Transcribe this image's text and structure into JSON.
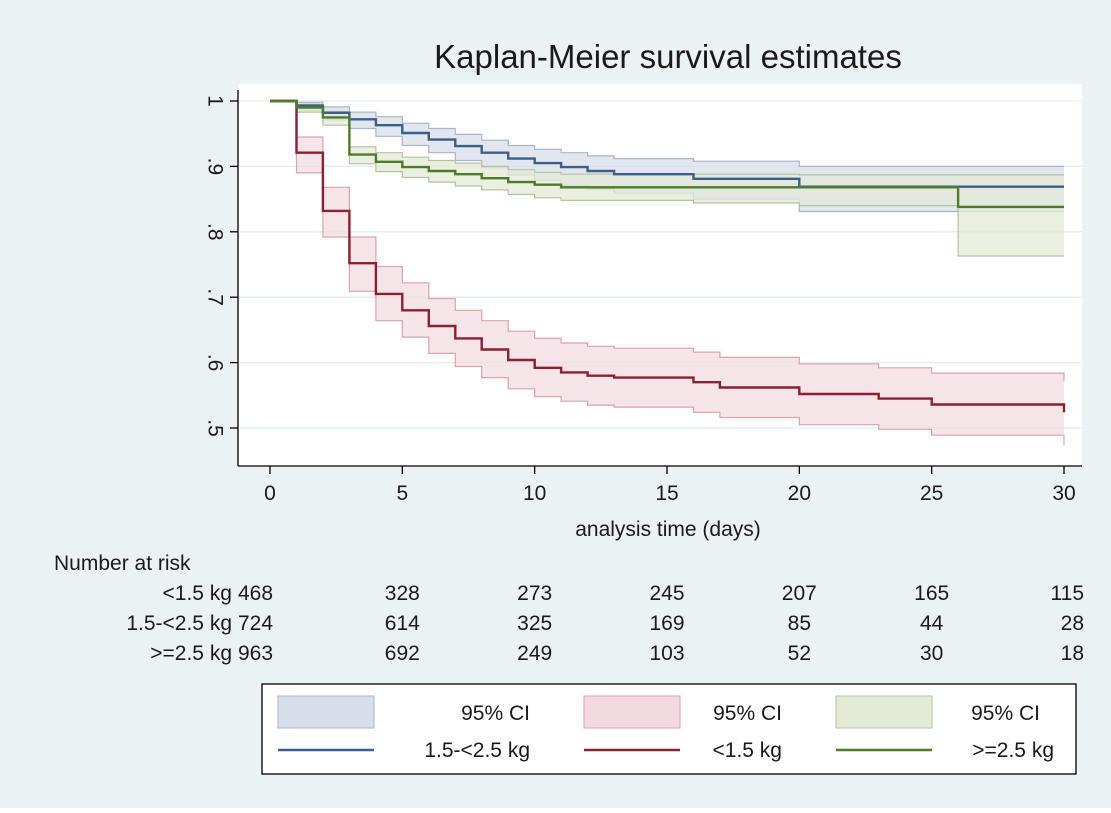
{
  "chart_data": {
    "type": "line",
    "title": "Kaplan-Meier survival estimates",
    "xlabel": "analysis time (days)",
    "ylabel": "",
    "xlim": [
      0,
      30
    ],
    "ylim": [
      0.47,
      1.01
    ],
    "x_ticks": [
      0,
      5,
      10,
      15,
      20,
      25,
      30
    ],
    "y_ticks": [
      0.5,
      0.6,
      0.7,
      0.8,
      0.9,
      1.0
    ],
    "y_tick_labels": [
      ".5",
      ".6",
      ".7",
      ".8",
      ".9",
      "1"
    ],
    "grid": true,
    "colors": {
      "background_outer": "#eaf2f3",
      "plot_area": "#ffffff",
      "grid": "#e4ecee",
      "axis": "#000000"
    },
    "series": [
      {
        "name": "1.5-<2.5 kg",
        "color": "#3a5f88",
        "ci_fill": "#d8dee9",
        "ci_stroke": "#a7b6cc",
        "x": [
          0,
          1,
          2,
          3,
          4,
          5,
          6,
          7,
          8,
          9,
          10,
          11,
          12,
          13,
          16,
          20,
          30
        ],
        "y": [
          1.0,
          0.993,
          0.982,
          0.972,
          0.963,
          0.951,
          0.941,
          0.931,
          0.921,
          0.912,
          0.905,
          0.899,
          0.893,
          0.888,
          0.881,
          0.869,
          0.869
        ],
        "lower": [
          1.0,
          0.986,
          0.971,
          0.958,
          0.946,
          0.932,
          0.921,
          0.909,
          0.898,
          0.887,
          0.879,
          0.871,
          0.865,
          0.859,
          0.85,
          0.831,
          0.831
        ],
        "upper": [
          1.0,
          0.998,
          0.991,
          0.983,
          0.976,
          0.966,
          0.958,
          0.949,
          0.94,
          0.932,
          0.926,
          0.921,
          0.916,
          0.912,
          0.908,
          0.9,
          0.9
        ]
      },
      {
        "name": "<1.5 kg",
        "color": "#8a2030",
        "ci_fill": "#f2dbe0",
        "ci_stroke": "#dba3ad",
        "x": [
          0,
          1,
          2,
          3,
          4,
          5,
          6,
          7,
          8,
          9,
          10,
          11,
          12,
          13,
          16,
          17,
          20,
          23,
          25,
          30
        ],
        "y": [
          1.0,
          0.921,
          0.832,
          0.752,
          0.705,
          0.68,
          0.656,
          0.637,
          0.62,
          0.604,
          0.592,
          0.585,
          0.58,
          0.577,
          0.57,
          0.562,
          0.552,
          0.545,
          0.536,
          0.524
        ],
        "lower": [
          1.0,
          0.89,
          0.792,
          0.709,
          0.664,
          0.639,
          0.614,
          0.594,
          0.577,
          0.56,
          0.548,
          0.541,
          0.535,
          0.532,
          0.524,
          0.516,
          0.505,
          0.498,
          0.489,
          0.474
        ],
        "upper": [
          1.0,
          0.945,
          0.868,
          0.792,
          0.747,
          0.722,
          0.698,
          0.68,
          0.664,
          0.648,
          0.637,
          0.63,
          0.625,
          0.622,
          0.616,
          0.608,
          0.598,
          0.592,
          0.584,
          0.572
        ]
      },
      {
        "name": ">=2.5 kg",
        "color": "#4f7a2a",
        "ci_fill": "#e3ead6",
        "ci_stroke": "#b3c4a0",
        "x": [
          0,
          1,
          2,
          3,
          4,
          5,
          6,
          7,
          8,
          9,
          10,
          11,
          16,
          20,
          26,
          30
        ],
        "y": [
          1.0,
          0.99,
          0.975,
          0.918,
          0.907,
          0.899,
          0.893,
          0.888,
          0.882,
          0.876,
          0.872,
          0.868,
          0.868,
          0.868,
          0.838,
          0.838
        ],
        "lower": [
          1.0,
          0.983,
          0.963,
          0.904,
          0.892,
          0.883,
          0.876,
          0.87,
          0.864,
          0.857,
          0.852,
          0.848,
          0.844,
          0.84,
          0.763,
          0.763
        ],
        "upper": [
          1.0,
          0.995,
          0.984,
          0.93,
          0.921,
          0.914,
          0.909,
          0.905,
          0.9,
          0.895,
          0.891,
          0.888,
          0.888,
          0.887,
          0.887,
          0.887
        ]
      }
    ],
    "number_at_risk": {
      "heading": "Number at risk",
      "times": [
        0,
        5,
        10,
        15,
        20,
        25,
        30
      ],
      "rows": [
        {
          "label": "<1.5 kg",
          "values": [
            "468",
            "328",
            "273",
            "245",
            "207",
            "165",
            "115"
          ]
        },
        {
          "label": "1.5-<2.5 kg",
          "values": [
            "724",
            "614",
            "325",
            "169",
            "85",
            "44",
            "28"
          ]
        },
        {
          "label": ">=2.5 kg",
          "values": [
            "963",
            "692",
            "249",
            "103",
            "52",
            "30",
            "18"
          ]
        }
      ]
    },
    "legend": {
      "position": "bottom",
      "ci_label": "95% CI",
      "order": [
        "1.5-<2.5 kg",
        "<1.5 kg",
        ">=2.5 kg"
      ]
    }
  }
}
